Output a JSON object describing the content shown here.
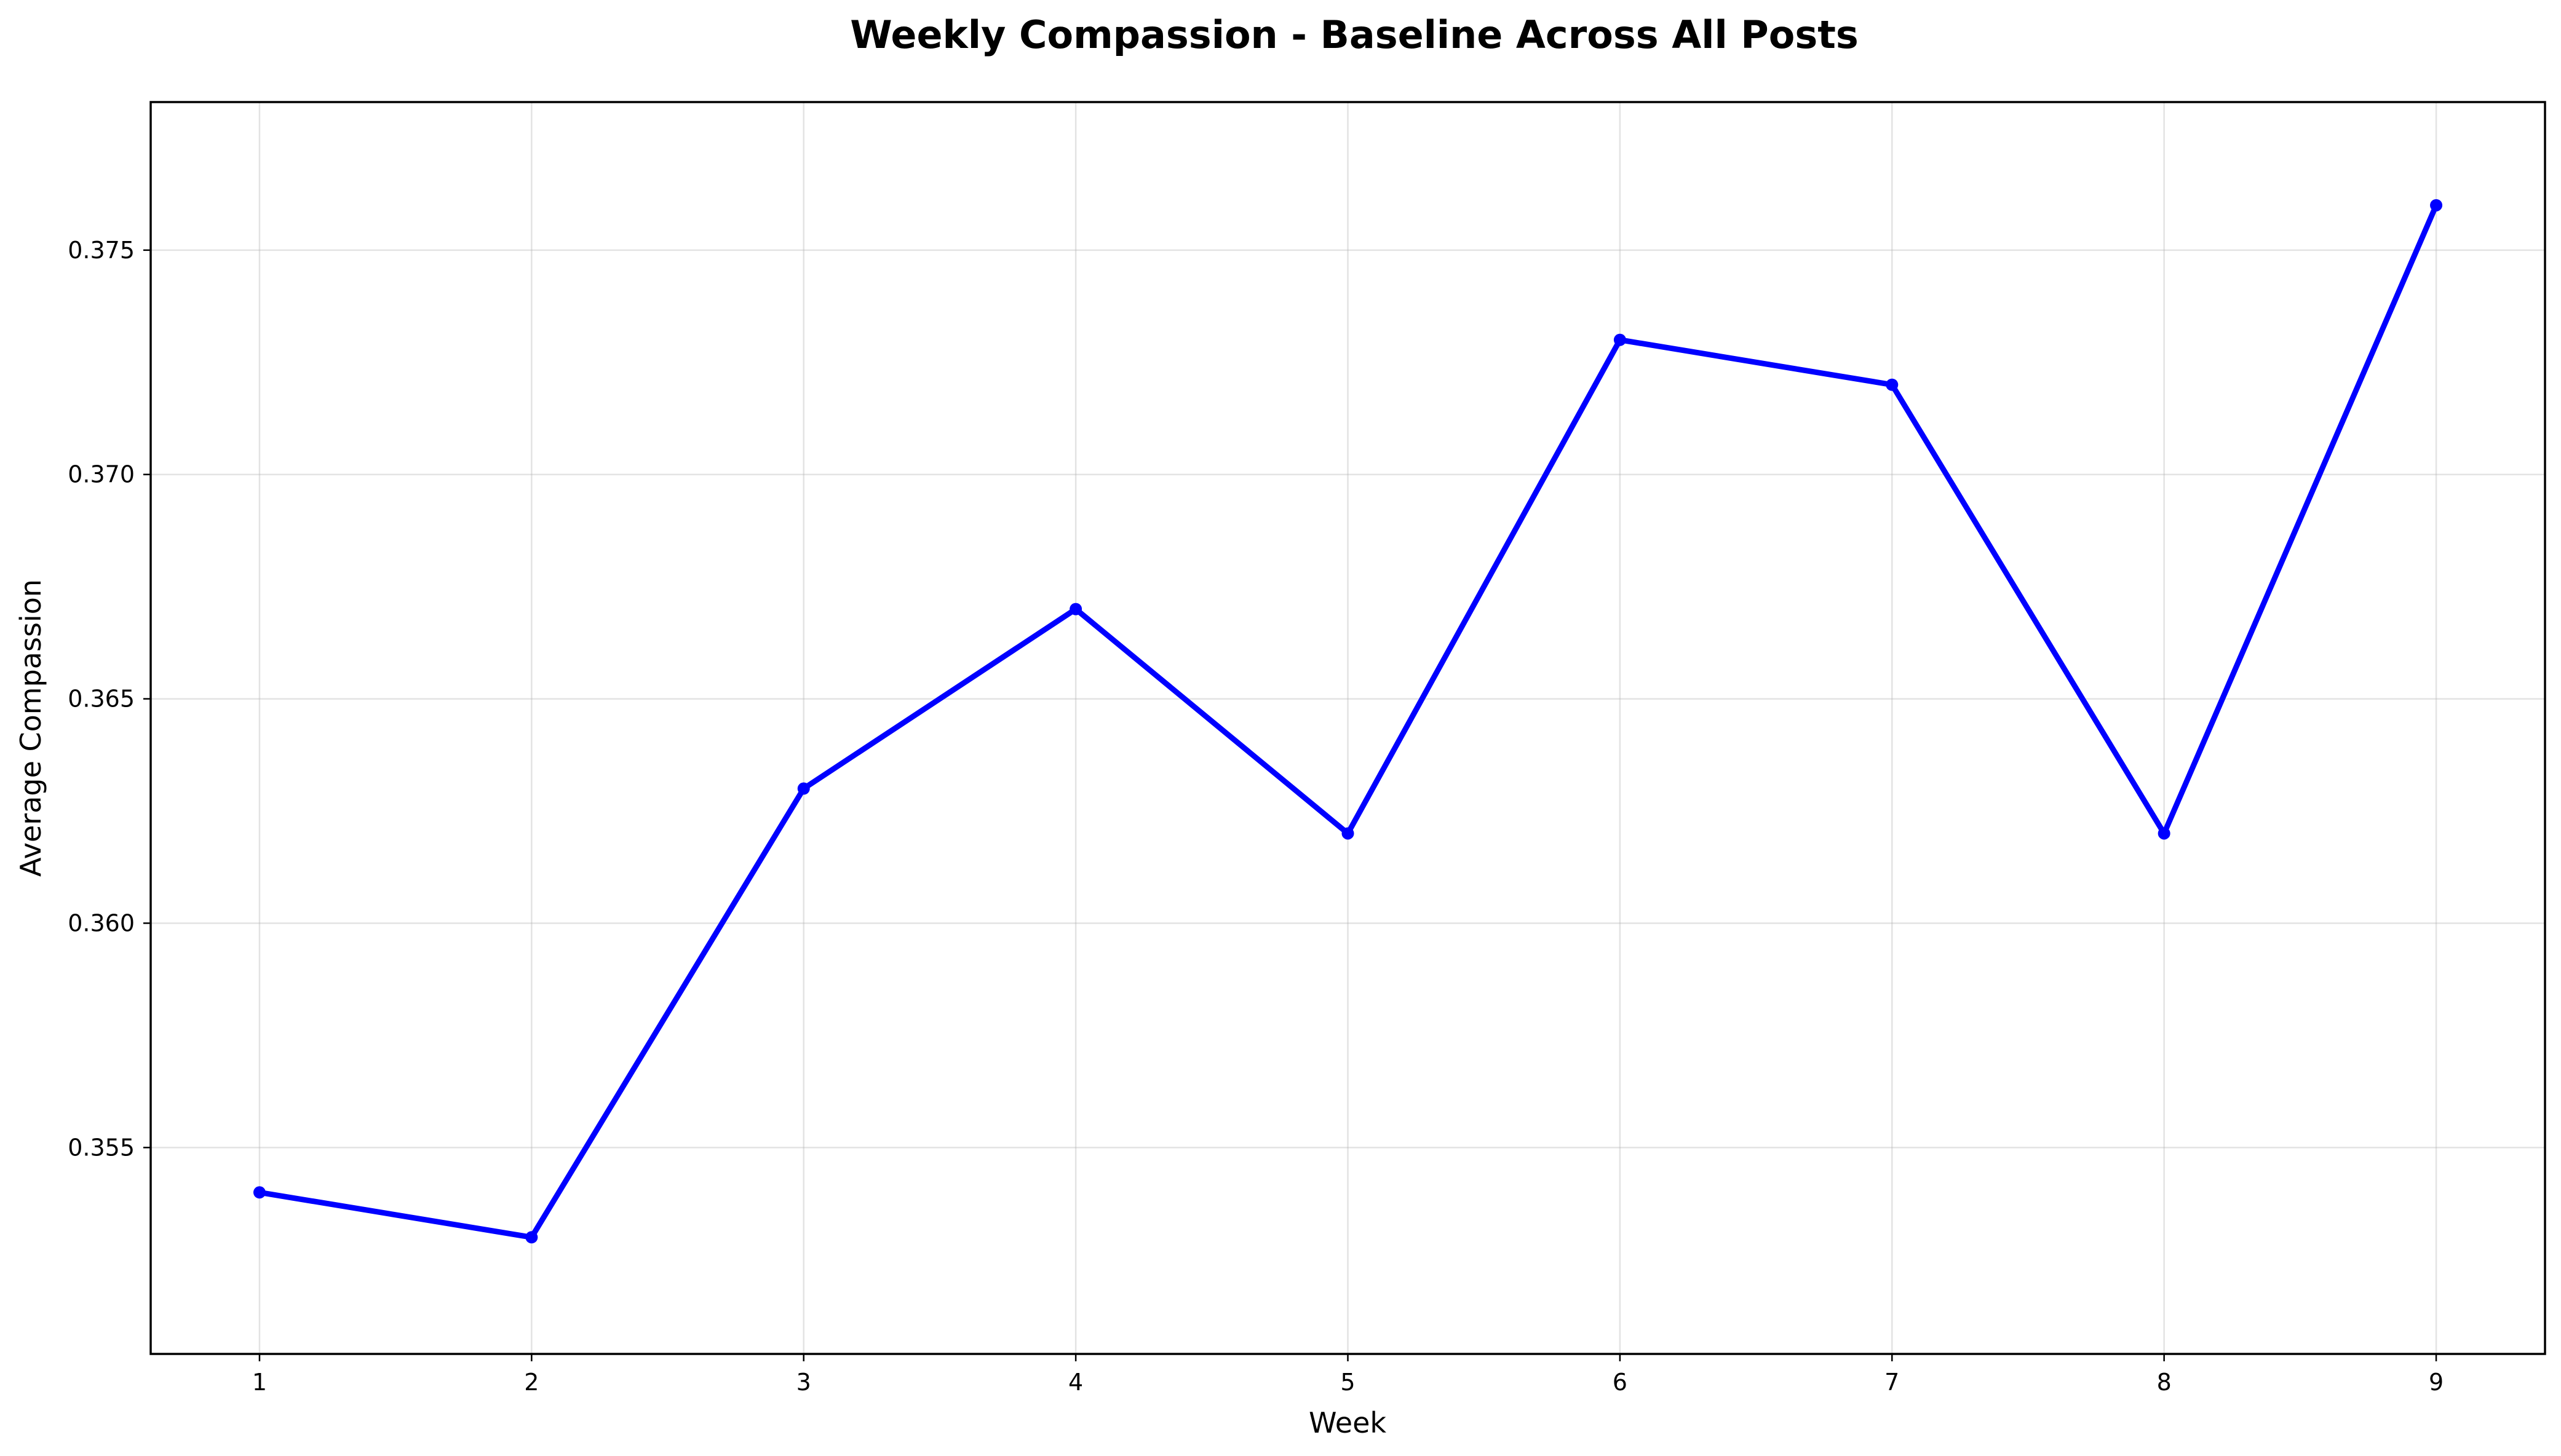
{
  "chart_data": {
    "type": "line",
    "title": "Weekly Compassion - Baseline Across All Posts",
    "xlabel": "Week",
    "ylabel": "Average Compassion",
    "x": [
      1,
      2,
      3,
      4,
      5,
      6,
      7,
      8,
      9
    ],
    "xticks": [
      "1",
      "2",
      "3",
      "4",
      "5",
      "6",
      "7",
      "8",
      "9"
    ],
    "xlim": [
      0.6,
      9.4
    ],
    "yticks": [
      "0.355",
      "0.360",
      "0.365",
      "0.370",
      "0.375"
    ],
    "ytick_values": [
      0.355,
      0.36,
      0.365,
      0.37,
      0.375
    ],
    "ylim": [
      0.3504,
      0.3783
    ],
    "grid": true,
    "series": [
      {
        "name": "Average Compassion",
        "color": "#0000ff",
        "marker": "circle",
        "values": [
          0.354,
          0.353,
          0.363,
          0.367,
          0.362,
          0.373,
          0.372,
          0.362,
          0.376
        ]
      }
    ]
  }
}
